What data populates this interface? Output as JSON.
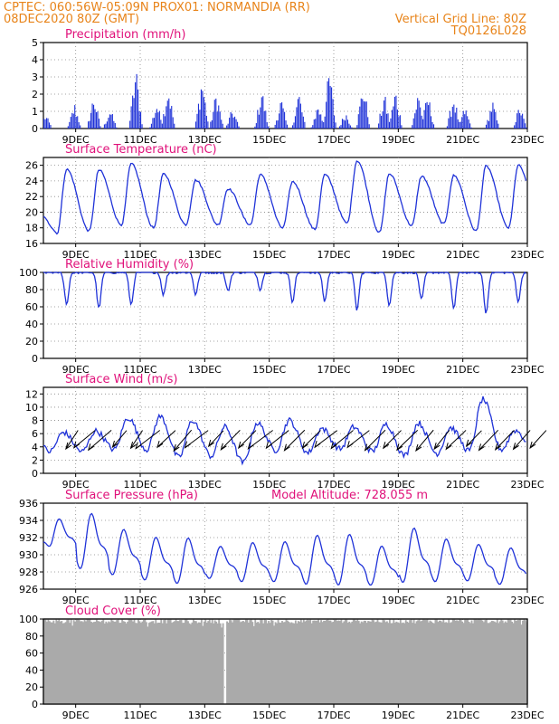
{
  "header": {
    "line1_left": "CPTEC:   060:56W-05:09N   PROX01: NORMANDIA (RR)",
    "line2_left": "08DEC2020 80Z (GMT)",
    "line2_right": "Vertical Grid Line: 80Z",
    "line3_right": "TQ0126L028"
  },
  "colors": {
    "header": "#e8841a",
    "title": "#e0117a",
    "series": "#1f32d8",
    "cloud": "#aaaaaa",
    "grid": "#888888",
    "arrows": "#000000"
  },
  "chart_data": [
    {
      "type": "bar",
      "title": "Precipitation (mm/h)",
      "ylim": [
        0,
        5
      ],
      "yticks": [
        "0",
        "1",
        "2",
        "3",
        "4",
        "5"
      ],
      "x_tick_labels": [
        "9DEC",
        "11DEC",
        "13DEC",
        "15DEC",
        "17DEC",
        "19DEC",
        "21DEC",
        "23DEC"
      ],
      "grid": true,
      "bursts": [
        {
          "day": 8.05,
          "peak": 0.9
        },
        {
          "day": 8.95,
          "peak": 1.6
        },
        {
          "day": 9.55,
          "peak": 2.2
        },
        {
          "day": 10.05,
          "peak": 1.3
        },
        {
          "day": 10.85,
          "peak": 3.9
        },
        {
          "day": 11.5,
          "peak": 1.7
        },
        {
          "day": 11.85,
          "peak": 2.9
        },
        {
          "day": 12.9,
          "peak": 3.4
        },
        {
          "day": 13.35,
          "peak": 2.4
        },
        {
          "day": 13.85,
          "peak": 1.3
        },
        {
          "day": 14.75,
          "peak": 2.6
        },
        {
          "day": 15.35,
          "peak": 1.9
        },
        {
          "day": 15.9,
          "peak": 2.4
        },
        {
          "day": 16.5,
          "peak": 1.6
        },
        {
          "day": 16.85,
          "peak": 3.8
        },
        {
          "day": 17.35,
          "peak": 1.1
        },
        {
          "day": 17.9,
          "peak": 3.0
        },
        {
          "day": 18.55,
          "peak": 2.2
        },
        {
          "day": 18.9,
          "peak": 2.5
        },
        {
          "day": 19.6,
          "peak": 2.3
        },
        {
          "day": 19.9,
          "peak": 2.2
        },
        {
          "day": 20.7,
          "peak": 2.2
        },
        {
          "day": 21.05,
          "peak": 1.4
        },
        {
          "day": 21.9,
          "peak": 1.8
        },
        {
          "day": 22.75,
          "peak": 1.5
        }
      ]
    },
    {
      "type": "line",
      "title": "Surface Temperature (nC)",
      "ylim": [
        16,
        27
      ],
      "yticks": [
        "16",
        "18",
        "20",
        "22",
        "24",
        "26"
      ],
      "x_tick_labels": [
        "9DEC",
        "11DEC",
        "13DEC",
        "15DEC",
        "17DEC",
        "19DEC",
        "21DEC",
        "23DEC"
      ],
      "grid": true,
      "daily_max": [
        25.5,
        25.4,
        26.2,
        24.9,
        24.1,
        23.0,
        24.8,
        23.9,
        24.8,
        26.6,
        24.9,
        24.6,
        24.7,
        25.9,
        26.0
      ],
      "daily_min": [
        17.2,
        17.6,
        18.4,
        18.0,
        18.4,
        18.4,
        18.4,
        18.0,
        17.8,
        18.6,
        17.4,
        18.3,
        18.5,
        17.6,
        18.0
      ],
      "start_value": 19.5
    },
    {
      "type": "line",
      "title": "Relative Humidity (%)",
      "ylim": [
        0,
        100
      ],
      "yticks": [
        "0",
        "20",
        "40",
        "60",
        "80",
        "100"
      ],
      "x_tick_labels": [
        "9DEC",
        "11DEC",
        "13DEC",
        "15DEC",
        "17DEC",
        "19DEC",
        "21DEC",
        "23DEC"
      ],
      "grid": true,
      "daily_min": [
        62,
        58,
        62,
        74,
        74,
        78,
        80,
        66,
        66,
        56,
        62,
        68,
        58,
        52,
        66
      ],
      "daily_max": 100
    },
    {
      "type": "line",
      "title": "Surface Wind (m/s)",
      "ylim": [
        0,
        13
      ],
      "yticks": [
        "0",
        "2",
        "4",
        "6",
        "8",
        "10",
        "12"
      ],
      "x_tick_labels": [
        "9DEC",
        "11DEC",
        "13DEC",
        "15DEC",
        "17DEC",
        "19DEC",
        "21DEC",
        "23DEC"
      ],
      "grid": true,
      "daily_max": [
        6.2,
        6.4,
        8.4,
        8.6,
        8.0,
        7.0,
        7.6,
        8.0,
        6.8,
        7.0,
        7.4,
        7.6,
        6.9,
        11.2,
        6.5
      ],
      "daily_min": [
        3.3,
        3.3,
        3.6,
        3.6,
        2.4,
        2.6,
        1.6,
        3.5,
        3.1,
        3.7,
        3.3,
        2.7,
        3.0,
        3.4,
        3.6
      ],
      "arrows_direction": "from east-northeast",
      "arrows_per_day": 2
    },
    {
      "type": "line",
      "title": "Surface Pressure (hPa)",
      "subtitle": "Model Altitude: 728.055 m",
      "ylim": [
        926,
        936
      ],
      "yticks": [
        "926",
        "928",
        "930",
        "932",
        "934",
        "936"
      ],
      "x_tick_labels": [
        "9DEC",
        "11DEC",
        "13DEC",
        "15DEC",
        "17DEC",
        "19DEC",
        "21DEC",
        "23DEC"
      ],
      "grid": true,
      "daily_max": [
        934.0,
        934.5,
        932.7,
        931.8,
        931.7,
        930.8,
        931.2,
        931.3,
        932.0,
        932.1,
        930.8,
        932.8,
        931.6,
        931.0,
        930.6
      ],
      "daily_min": [
        930.5,
        928.3,
        927.6,
        927.0,
        926.6,
        927.2,
        926.8,
        926.8,
        926.5,
        926.4,
        926.4,
        926.7,
        926.8,
        926.9,
        926.5
      ],
      "start_value": 931.5
    },
    {
      "type": "area",
      "title": "Cloud Cover (%)",
      "ylim": [
        0,
        100
      ],
      "yticks": [
        "0",
        "20",
        "40",
        "60",
        "80",
        "100"
      ],
      "x_tick_labels": [
        "9DEC",
        "11DEC",
        "13DEC",
        "15DEC",
        "17DEC",
        "19DEC",
        "21DEC",
        "23DEC"
      ],
      "grid": true,
      "typical_value": 97,
      "gap_at_day": 13.6
    }
  ]
}
